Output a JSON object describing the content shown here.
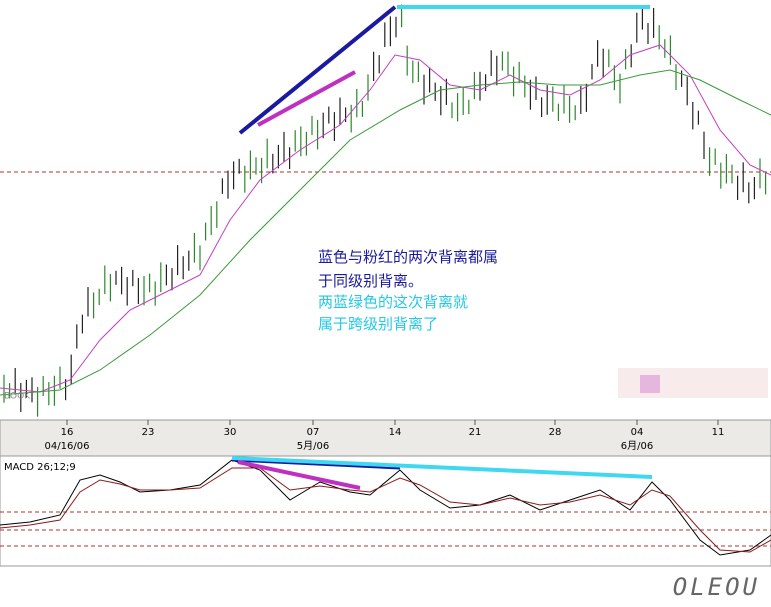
{
  "dates": [
    "16",
    "23",
    "30",
    "07",
    "14",
    "21",
    "28",
    "04",
    "11"
  ],
  "months": [
    "04/16/06",
    "5月/06",
    "6月/06"
  ],
  "indicator": "MACD 26;12;9",
  "notes": [
    "蓝色与粉红的两次背离都属",
    "于同级别背离。",
    "两蓝绿色的这次背离就",
    "属于跨级别背离了"
  ],
  "corner_label": "BOOK",
  "watermark": "OLEOU"
}
